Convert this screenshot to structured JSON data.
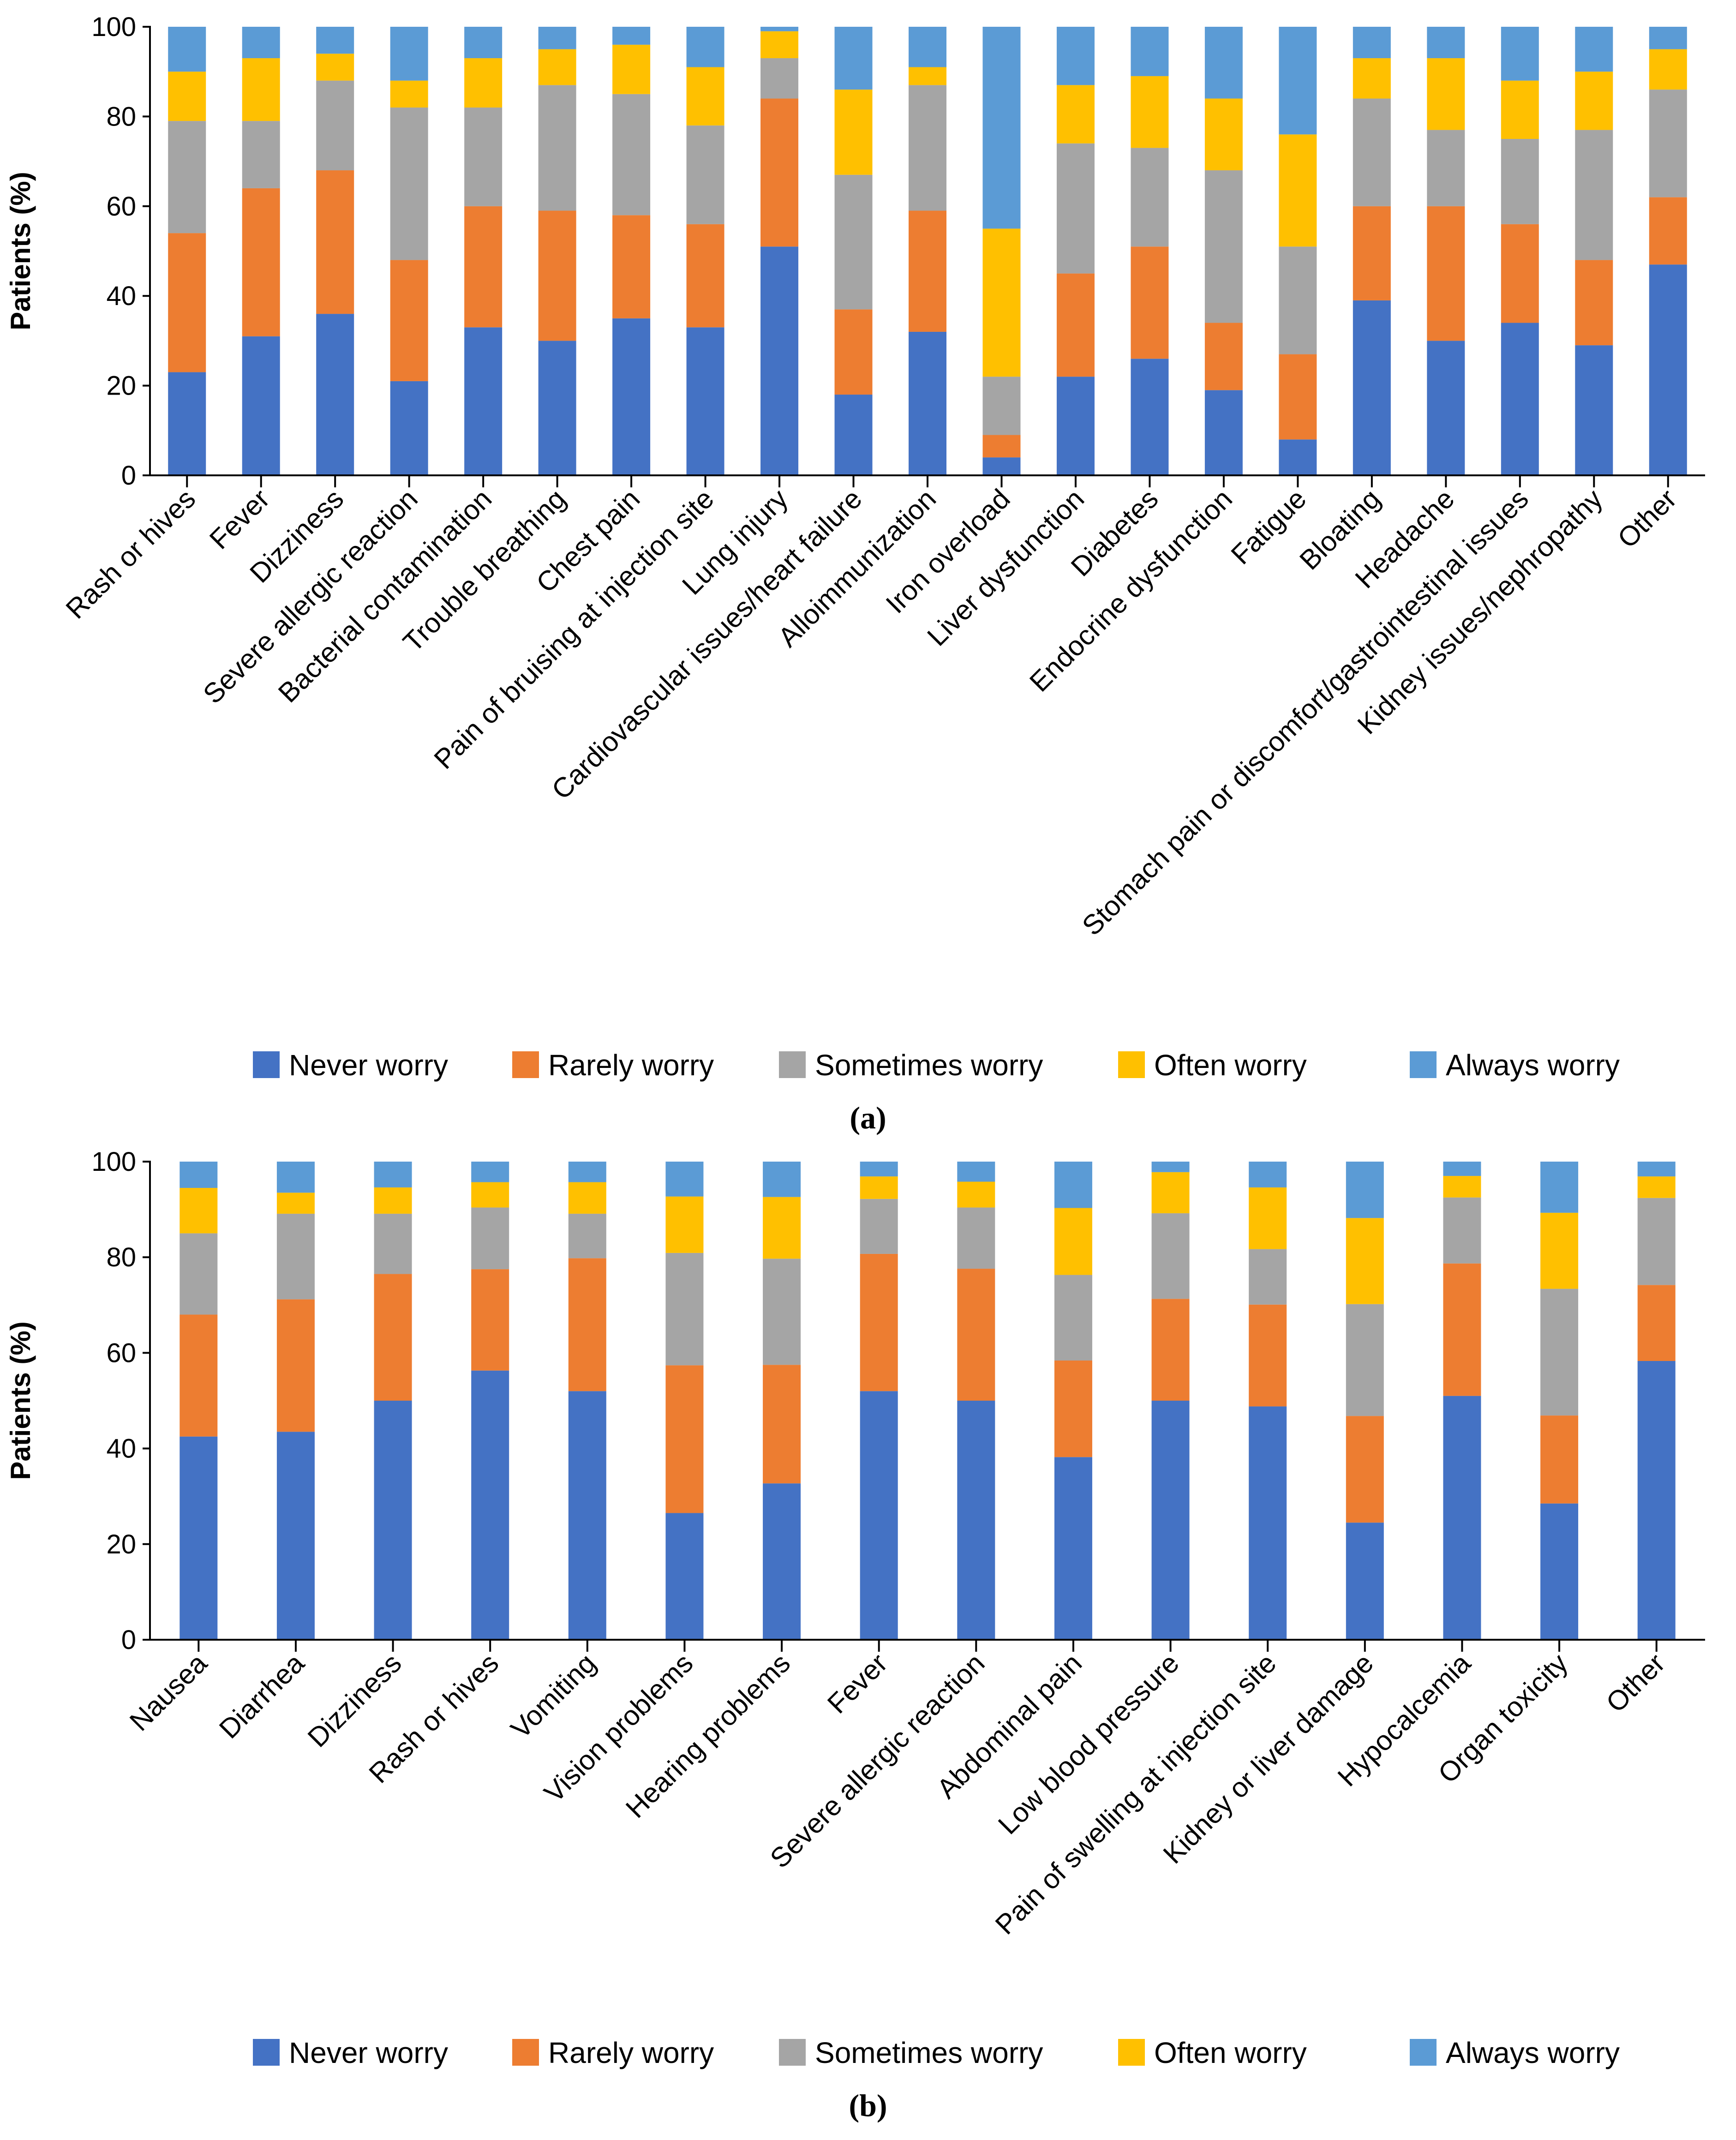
{
  "series_names": [
    "Never worry",
    "Rarely worry",
    "Sometimes worry",
    "Often worry",
    "Always worry"
  ],
  "colors": [
    "#4472C4",
    "#ED7D31",
    "#A5A5A5",
    "#FFC000",
    "#5B9BD5"
  ],
  "chart_data": [
    {
      "type": "bar",
      "stacked": true,
      "panel": "a",
      "ylabel": "Patients (%)",
      "ylim": [
        0,
        100
      ],
      "yticks": [
        0,
        20,
        40,
        60,
        80,
        100
      ],
      "categories": [
        "Rash or hives",
        "Fever",
        "Dizziness",
        "Severe allergic reaction",
        "Bacterial contamination",
        "Trouble breathing",
        "Chest pain",
        "Pain of bruising at injection site",
        "Lung injury",
        "Cardiovascular issues/heart failure",
        "Alloimmunization",
        "Iron overload",
        "Liver dysfunction",
        "Diabetes",
        "Endocrine dysfunction",
        "Fatigue",
        "Bloating",
        "Headache",
        "Stomach pain or discomfort/gastrointestinal issues",
        "Kidney issues/nephropathy",
        "Other"
      ],
      "series": [
        {
          "name": "Never worry",
          "values": [
            23,
            31,
            36,
            21,
            33,
            30,
            35,
            33,
            51,
            18,
            32,
            4,
            22,
            26,
            19,
            8,
            39,
            30,
            34,
            29,
            47
          ]
        },
        {
          "name": "Rarely worry",
          "values": [
            31,
            33,
            32,
            27,
            27,
            29,
            23,
            23,
            33,
            19,
            27,
            5,
            23,
            25,
            15,
            19,
            21,
            30,
            22,
            19,
            15
          ]
        },
        {
          "name": "Sometimes worry",
          "values": [
            25,
            15,
            20,
            34,
            22,
            28,
            27,
            22,
            9,
            30,
            28,
            13,
            29,
            22,
            34,
            24,
            24,
            17,
            19,
            29,
            24
          ]
        },
        {
          "name": "Often worry",
          "values": [
            11,
            14,
            6,
            6,
            11,
            8,
            11,
            13,
            6,
            19,
            4,
            33,
            13,
            16,
            16,
            25,
            9,
            16,
            13,
            13,
            9
          ]
        },
        {
          "name": "Always worry",
          "values": [
            10,
            7,
            6,
            12,
            7,
            5,
            4,
            9,
            1,
            14,
            9,
            45,
            13,
            11,
            16,
            24,
            7,
            7,
            12,
            10,
            5
          ]
        }
      ],
      "caption": "(a)",
      "legend_position": "bottom"
    },
    {
      "type": "bar",
      "stacked": true,
      "panel": "b",
      "ylabel": "Patients (%)",
      "ylim": [
        0,
        100
      ],
      "yticks": [
        0,
        20,
        40,
        60,
        80,
        100
      ],
      "categories": [
        "Nausea",
        "Diarrhea",
        "Dizziness",
        "Rash or hives",
        "Vomiting",
        "Vision problems",
        "Hearing problems",
        "Fever",
        "Severe allergic reaction",
        "Abdominal pain",
        "Low blood pressure",
        "Pain of swelling at injection site",
        "Kidney or liver damage",
        "Hypocalcemia",
        "Organ toxicity",
        "Other"
      ],
      "series": [
        {
          "name": "Never worry",
          "values": [
            42.5,
            43.5,
            50,
            56.3,
            52,
            26.5,
            32.7,
            52,
            50,
            38.2,
            50,
            48.8,
            24.5,
            51,
            28.5,
            58.3
          ]
        },
        {
          "name": "Rarely worry",
          "values": [
            25.5,
            27.7,
            26.5,
            21.2,
            27.8,
            30.9,
            24.8,
            28.7,
            27.6,
            20.2,
            21.3,
            21.3,
            22.3,
            27.7,
            18.4,
            15.9
          ]
        },
        {
          "name": "Sometimes worry",
          "values": [
            17,
            17.9,
            12.6,
            12.9,
            9.3,
            23.5,
            22.2,
            11.5,
            12.8,
            17.9,
            17.9,
            11.6,
            23.4,
            13.8,
            26.5,
            18.2
          ]
        },
        {
          "name": "Often worry",
          "values": [
            9.5,
            4.4,
            5.5,
            5.3,
            6.6,
            11.8,
            12.9,
            4.7,
            5.4,
            14,
            8.6,
            12.9,
            18,
            4.5,
            15.9,
            4.5
          ]
        },
        {
          "name": "Always worry",
          "values": [
            5.5,
            6.5,
            5.4,
            4.3,
            4.3,
            7.3,
            7.4,
            3.1,
            4.2,
            9.7,
            2.2,
            5.4,
            11.8,
            3,
            10.7,
            3.1
          ]
        }
      ],
      "caption": "(b)",
      "legend_position": "bottom"
    }
  ]
}
